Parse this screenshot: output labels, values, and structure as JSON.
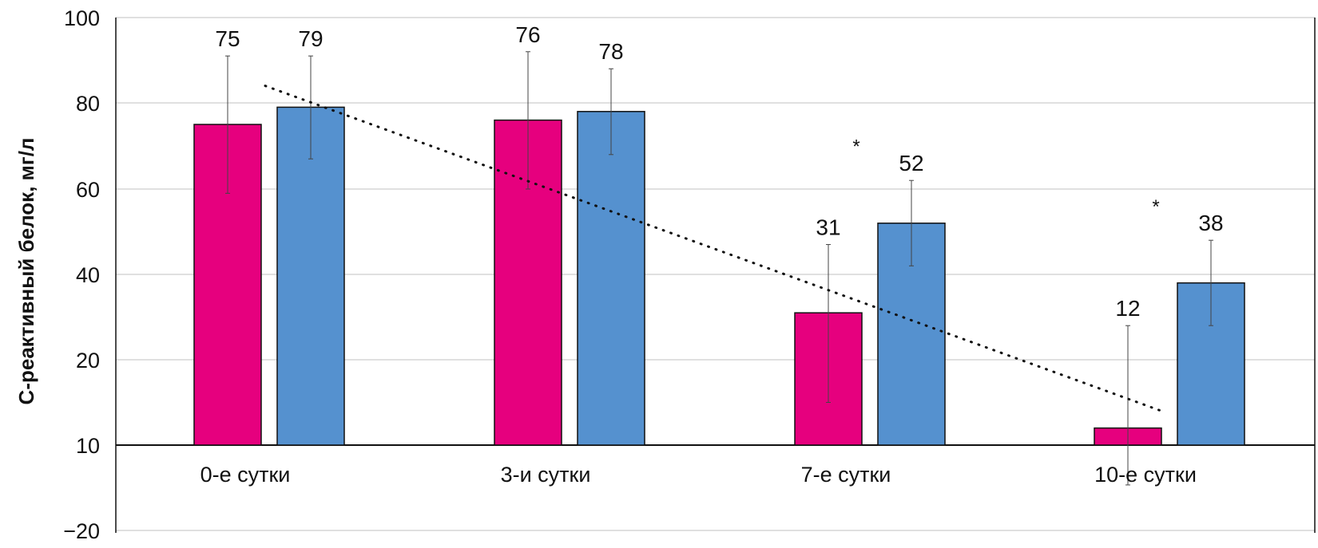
{
  "chart_data": {
    "type": "bar",
    "ylabel": "С-реактивный белок, мг/л",
    "xlabel": "",
    "title": "",
    "ylim": [
      -20,
      100
    ],
    "yticks": [
      -20,
      10,
      20,
      40,
      60,
      80,
      100
    ],
    "ytick_labels": [
      "−20",
      "10",
      "20",
      "40",
      "60",
      "80",
      "100"
    ],
    "baseline": 10,
    "grid": true,
    "categories": [
      "0-е сутки",
      "3-и сутки",
      "7-е сутки",
      "10-е сутки"
    ],
    "series": [
      {
        "color": "#e6007e",
        "values": [
          75,
          76,
          31,
          12
        ],
        "error": [
          16,
          16,
          16,
          16
        ],
        "labels": [
          "75",
          "76",
          "31",
          "12"
        ]
      },
      {
        "color": "#5591cf",
        "values": [
          79,
          78,
          52,
          38
        ],
        "error": [
          12,
          10,
          10,
          10
        ],
        "labels": [
          "79",
          "78",
          "52",
          "38"
        ]
      }
    ],
    "trendline": {
      "style": "dotted",
      "x_start": 0,
      "y_start": 84,
      "x_end": 3,
      "y_end": 14
    },
    "annotations": [
      {
        "category_index": 2,
        "text": "*",
        "y": 71
      },
      {
        "category_index": 3,
        "text": "*",
        "y": 57
      }
    ]
  }
}
